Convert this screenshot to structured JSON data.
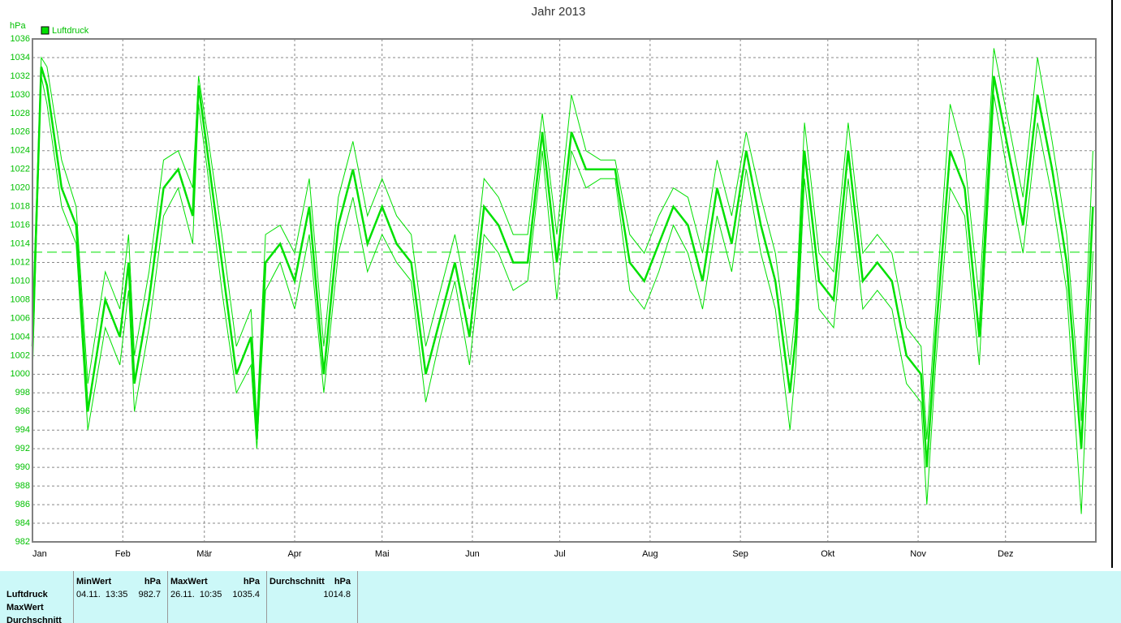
{
  "chart_data": {
    "type": "line",
    "title": "Jahr 2013",
    "ylabel": "hPa",
    "x": [
      0,
      3,
      5,
      10,
      15,
      19,
      25,
      30,
      33,
      35,
      40,
      45,
      50,
      55,
      57,
      60,
      65,
      70,
      75,
      77,
      80,
      85,
      90,
      95,
      100,
      105,
      110,
      115,
      120,
      125,
      130,
      135,
      140,
      145,
      150,
      155,
      160,
      165,
      170,
      175,
      180,
      185,
      190,
      195,
      200,
      205,
      210,
      215,
      220,
      225,
      230,
      235,
      240,
      245,
      250,
      255,
      260,
      262,
      265,
      270,
      275,
      280,
      285,
      290,
      295,
      300,
      305,
      307,
      310,
      315,
      320,
      325,
      330,
      335,
      340,
      345,
      350,
      355,
      360,
      364
    ],
    "series": [
      {
        "name": "Luftdruck",
        "color": "#00e000",
        "values": [
          1003,
          1033,
          1031,
          1020,
          1016,
          996,
          1008,
          1004,
          1012,
          999,
          1008,
          1020,
          1022,
          1017,
          1031,
          1024,
          1012,
          1000,
          1004,
          993,
          1012,
          1014,
          1010,
          1018,
          1000,
          1016,
          1022,
          1014,
          1018,
          1014,
          1012,
          1000,
          1006,
          1012,
          1004,
          1018,
          1016,
          1012,
          1012,
          1026,
          1012,
          1026,
          1022,
          1022,
          1022,
          1012,
          1010,
          1014,
          1018,
          1016,
          1010,
          1020,
          1014,
          1024,
          1016,
          1010,
          998,
          1004,
          1024,
          1010,
          1008,
          1024,
          1010,
          1012,
          1010,
          1002,
          1000,
          990,
          1004,
          1024,
          1020,
          1004,
          1032,
          1024,
          1016,
          1030,
          1022,
          1012,
          992,
          1018
        ]
      },
      {
        "color": "#00e000",
        "values": [
          1006,
          1034,
          1033,
          1023,
          1018,
          999,
          1011,
          1007,
          1015,
          1002,
          1011,
          1023,
          1024,
          1020,
          1032,
          1026,
          1015,
          1003,
          1007,
          995,
          1015,
          1016,
          1013,
          1021,
          1003,
          1019,
          1025,
          1017,
          1021,
          1017,
          1015,
          1003,
          1009,
          1015,
          1007,
          1021,
          1019,
          1015,
          1015,
          1028,
          1015,
          1030,
          1024,
          1023,
          1023,
          1015,
          1013,
          1017,
          1020,
          1019,
          1013,
          1023,
          1017,
          1026,
          1019,
          1013,
          1001,
          1007,
          1027,
          1013,
          1011,
          1027,
          1013,
          1015,
          1013,
          1005,
          1003,
          993,
          1007,
          1029,
          1023,
          1008,
          1035,
          1027,
          1019,
          1034,
          1025,
          1015,
          995,
          1024
        ]
      },
      {
        "color": "#00e000",
        "values": [
          1000,
          1032,
          1029,
          1018,
          1014,
          994,
          1005,
          1001,
          1009,
          996,
          1005,
          1017,
          1020,
          1014,
          1029,
          1022,
          1009,
          998,
          1001,
          992,
          1009,
          1012,
          1007,
          1015,
          998,
          1013,
          1019,
          1011,
          1015,
          1012,
          1010,
          997,
          1004,
          1010,
          1001,
          1015,
          1013,
          1009,
          1010,
          1024,
          1008,
          1024,
          1020,
          1021,
          1021,
          1009,
          1007,
          1011,
          1016,
          1013,
          1007,
          1017,
          1011,
          1022,
          1013,
          1007,
          994,
          1001,
          1021,
          1007,
          1005,
          1021,
          1007,
          1009,
          1007,
          999,
          997,
          986,
          1001,
          1020,
          1017,
          1001,
          1030,
          1021,
          1013,
          1027,
          1019,
          1009,
          985,
          1013
        ]
      }
    ],
    "mean_line": 1013.1,
    "xlim": [
      0,
      365
    ],
    "xticks": [
      {
        "value": 0,
        "label": "Jan"
      },
      {
        "value": 31,
        "label": "Feb"
      },
      {
        "value": 59,
        "label": "Mär"
      },
      {
        "value": 90,
        "label": "Apr"
      },
      {
        "value": 120,
        "label": "Mai"
      },
      {
        "value": 151,
        "label": "Jun"
      },
      {
        "value": 181,
        "label": "Jul"
      },
      {
        "value": 212,
        "label": "Aug"
      },
      {
        "value": 243,
        "label": "Sep"
      },
      {
        "value": 273,
        "label": "Okt"
      },
      {
        "value": 304,
        "label": "Nov"
      },
      {
        "value": 334,
        "label": "Dez"
      }
    ],
    "ylim": [
      982,
      1036
    ],
    "yticks": [
      982,
      984,
      986,
      988,
      990,
      992,
      994,
      996,
      998,
      1000,
      1002,
      1004,
      1006,
      1008,
      1010,
      1012,
      1014,
      1016,
      1018,
      1020,
      1022,
      1024,
      1026,
      1028,
      1030,
      1032,
      1034,
      1036
    ],
    "grid": true,
    "legend": "top-left"
  },
  "table": {
    "row_labels": [
      "Luftdruck",
      "MaxWert",
      "Durchschnitt"
    ],
    "columns": [
      {
        "header": "MinWert",
        "unit": "hPa",
        "time": "04.11.  13:35",
        "value": 982.7
      },
      {
        "header": "MaxWert",
        "unit": "hPa",
        "time": "26.11.  10:35",
        "value": 1035.4
      },
      {
        "header": "Durchschnitt",
        "unit": "hPa",
        "value": 1014.8
      }
    ]
  }
}
